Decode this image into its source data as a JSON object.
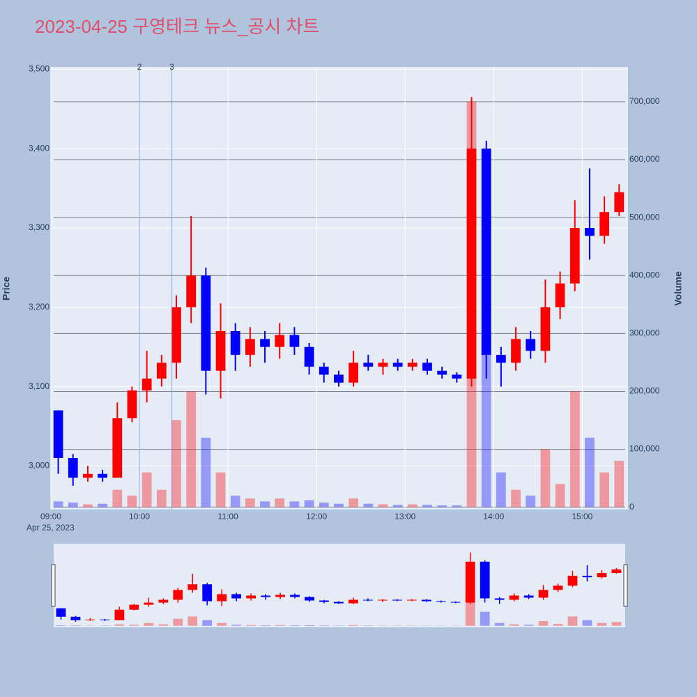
{
  "chart_data": {
    "type": "candlestick",
    "title": "2023-04-25 구영테크 뉴스_공시 차트",
    "y_label": "Price",
    "y2_label": "Volume",
    "x_date_label": "Apr 25, 2023",
    "increasing_color": "#ff0000",
    "decreasing_color": "#0000ff",
    "grid": true,
    "x": [
      "09:00",
      "09:10",
      "09:20",
      "09:30",
      "09:40",
      "09:50",
      "10:00",
      "10:10",
      "10:20",
      "10:30",
      "10:40",
      "10:50",
      "11:00",
      "11:10",
      "11:20",
      "11:30",
      "11:40",
      "11:50",
      "12:00",
      "12:10",
      "12:20",
      "12:30",
      "12:40",
      "12:50",
      "13:00",
      "13:10",
      "13:20",
      "13:30",
      "13:40",
      "13:50",
      "14:00",
      "14:10",
      "14:20",
      "14:30",
      "14:40",
      "14:50",
      "15:00",
      "15:10",
      "15:20"
    ],
    "open": [
      3070,
      3010,
      2985,
      2990,
      2985,
      3060,
      3095,
      3110,
      3130,
      3200,
      3240,
      3120,
      3170,
      3140,
      3160,
      3150,
      3165,
      3150,
      3125,
      3115,
      3105,
      3130,
      3125,
      3130,
      3125,
      3130,
      3120,
      3115,
      3110,
      3400,
      3140,
      3130,
      3160,
      3145,
      3200,
      3230,
      3300,
      3290,
      3320
    ],
    "high": [
      3070,
      3015,
      3000,
      2995,
      3080,
      3100,
      3145,
      3140,
      3215,
      3315,
      3250,
      3205,
      3180,
      3175,
      3170,
      3180,
      3175,
      3155,
      3130,
      3120,
      3145,
      3140,
      3135,
      3135,
      3135,
      3135,
      3125,
      3118,
      3465,
      3410,
      3150,
      3175,
      3170,
      3235,
      3245,
      3335,
      3375,
      3340,
      3355
    ],
    "low": [
      2990,
      2975,
      2980,
      2980,
      2985,
      3055,
      3080,
      3100,
      3110,
      3180,
      3090,
      3085,
      3120,
      3125,
      3130,
      3135,
      3140,
      3115,
      3105,
      3100,
      3100,
      3120,
      3115,
      3120,
      3120,
      3115,
      3110,
      3105,
      3100,
      3110,
      3100,
      3120,
      3135,
      3130,
      3185,
      3220,
      3260,
      3280,
      3315
    ],
    "close": [
      3010,
      2985,
      2990,
      2985,
      3060,
      3095,
      3110,
      3130,
      3200,
      3240,
      3120,
      3170,
      3140,
      3160,
      3150,
      3165,
      3150,
      3125,
      3115,
      3105,
      3130,
      3125,
      3130,
      3125,
      3130,
      3120,
      3115,
      3110,
      3400,
      3140,
      3130,
      3160,
      3145,
      3200,
      3230,
      3300,
      3290,
      3320,
      3345
    ],
    "volume": [
      10000,
      8000,
      5000,
      6000,
      30000,
      20000,
      60000,
      30000,
      150000,
      200000,
      120000,
      60000,
      20000,
      15000,
      10000,
      15000,
      10000,
      12000,
      8000,
      6000,
      15000,
      6000,
      5000,
      4000,
      5000,
      4000,
      3000,
      3000,
      700000,
      300000,
      60000,
      30000,
      20000,
      100000,
      40000,
      200000,
      120000,
      60000,
      80000
    ],
    "xlim": [
      "09:00",
      "15:31"
    ],
    "xticks": [
      "09:00",
      "10:00",
      "11:00",
      "12:00",
      "13:00",
      "14:00",
      "15:00"
    ],
    "ylim": [
      2945,
      3503
    ],
    "yticks": [
      {
        "value": 3000,
        "label": "3,000"
      },
      {
        "value": 3100,
        "label": "3,100"
      },
      {
        "value": 3200,
        "label": "3,200"
      },
      {
        "value": 3300,
        "label": "3,300"
      },
      {
        "value": 3400,
        "label": "3,400"
      },
      {
        "value": 3500,
        "label": "3,500"
      }
    ],
    "y2lim": [
      -4000,
      760000
    ],
    "y2ticks": [
      0,
      {
        "value": 100000,
        "label": "100,000"
      },
      {
        "value": 200000,
        "label": "200,000"
      },
      {
        "value": 300000,
        "label": "300,000"
      },
      {
        "value": 400000,
        "label": "400,000"
      },
      {
        "value": 500000,
        "label": "500,000"
      },
      {
        "value": 600000,
        "label": "600,000"
      },
      {
        "value": 700000,
        "label": "700,000"
      }
    ],
    "annotations": [
      {
        "x": "10:00",
        "text": "2"
      },
      {
        "x": "10:22",
        "text": "3"
      }
    ]
  }
}
